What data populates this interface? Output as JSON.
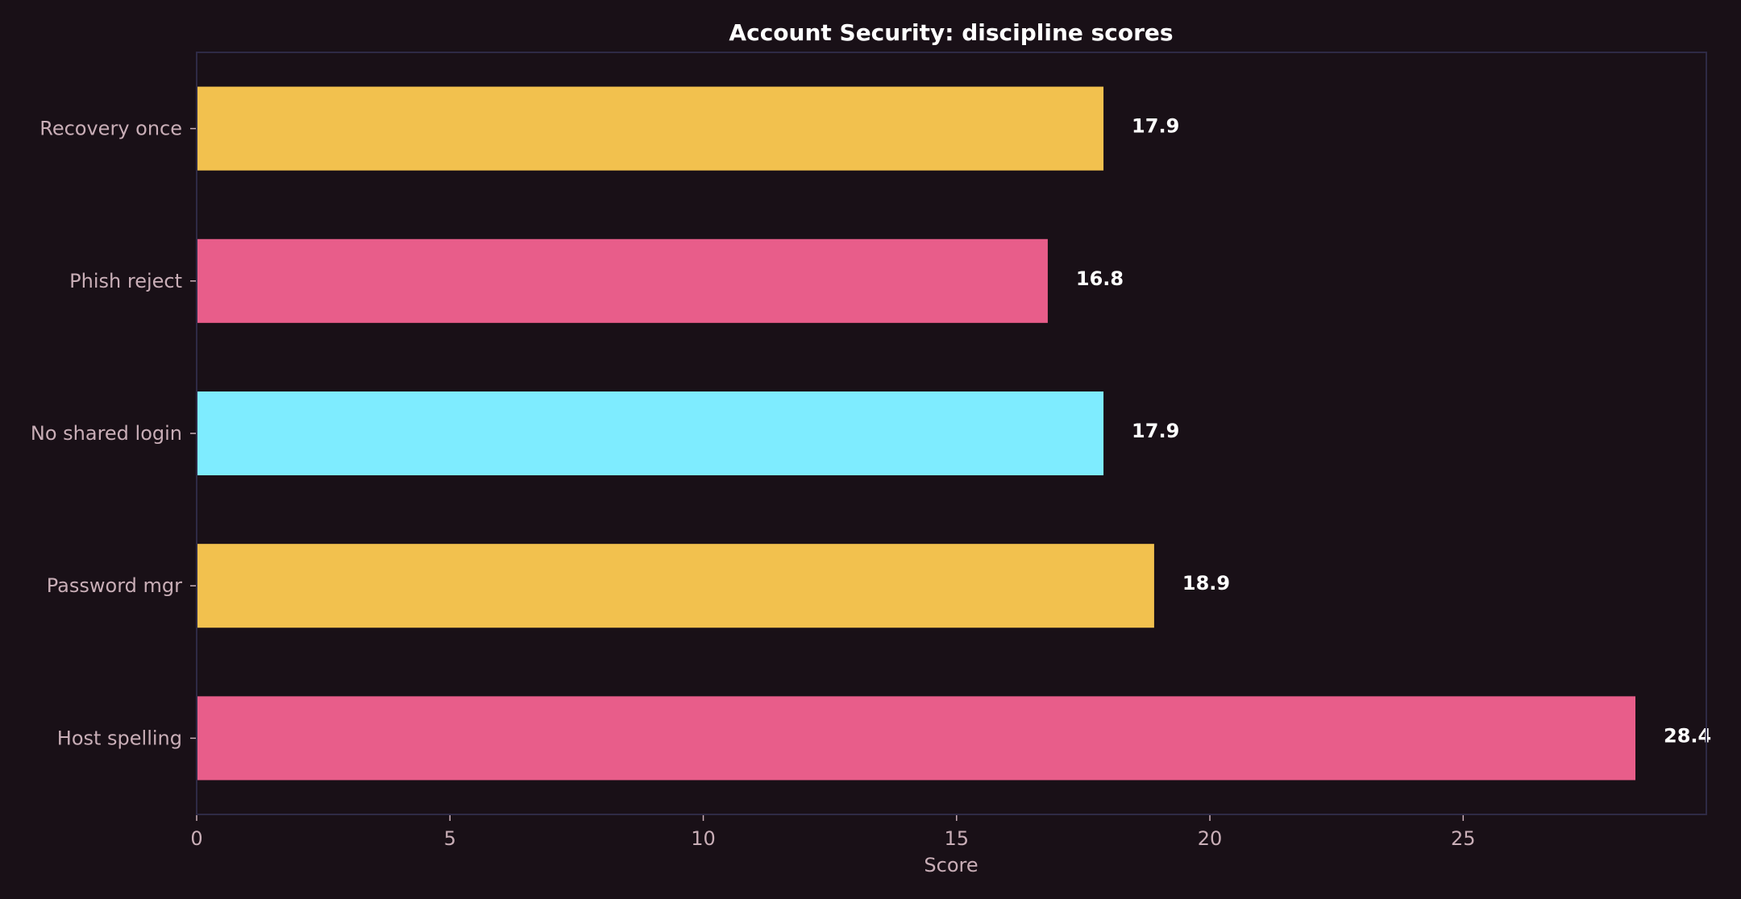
{
  "chart_data": {
    "type": "bar",
    "orientation": "horizontal",
    "title": "Account Security: discipline scores",
    "xlabel": "Score",
    "ylabel": "",
    "categories": [
      "Recovery once",
      "Phish reject",
      "No shared login",
      "Password mgr",
      "Host spelling"
    ],
    "values": [
      17.9,
      16.8,
      17.9,
      18.9,
      28.4
    ],
    "data_labels": [
      "17.9",
      "16.8",
      "17.9",
      "18.9",
      "28.4"
    ],
    "bar_colors": [
      "#f2c14e",
      "#e85d8a",
      "#7eecff",
      "#f2c14e",
      "#e85d8a"
    ],
    "xlim": [
      0,
      29.8
    ],
    "xticks": [
      0,
      5,
      10,
      15,
      20,
      25
    ],
    "xtick_labels": [
      "0",
      "5",
      "10",
      "15",
      "20",
      "25"
    ],
    "grid": false,
    "legend": "none"
  },
  "colors": {
    "background": "#191017",
    "frame": "#2e2a45",
    "tick_text": "#c9aeb7",
    "title_text": "#ffffff"
  }
}
